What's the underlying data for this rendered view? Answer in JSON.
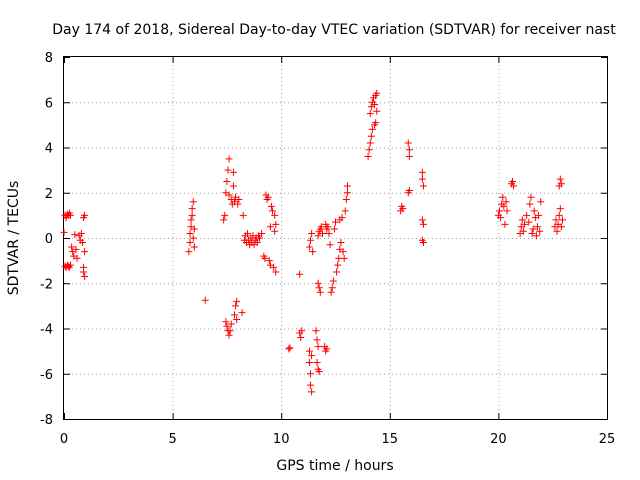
{
  "chart_data": {
    "type": "scatter",
    "title": "Day 174 of 2018, Sidereal Day-to-day VTEC variation (SDTVAR) for receiver nast",
    "xlabel": "GPS time / hours",
    "ylabel": "SDTVAR / TECUs",
    "xlim": [
      0,
      25
    ],
    "ylim": [
      -8,
      8
    ],
    "xticks": [
      "0",
      "5",
      "10",
      "15",
      "20",
      "25"
    ],
    "yticks": [
      "-8",
      "-6",
      "-4",
      "-2",
      "0",
      "2",
      "4",
      "6",
      "8"
    ],
    "grid": true,
    "marker": "plus",
    "color": "#ff0000",
    "series": [
      {
        "name": "SDTVAR",
        "points": [
          [
            0.0,
            0.25
          ],
          [
            0.05,
            1.0
          ],
          [
            0.1,
            0.9
          ],
          [
            0.15,
            1.05
          ],
          [
            0.2,
            1.0
          ],
          [
            0.25,
            1.1
          ],
          [
            0.3,
            1.0
          ],
          [
            0.05,
            -1.25
          ],
          [
            0.1,
            -1.3
          ],
          [
            0.15,
            -1.2
          ],
          [
            0.2,
            -1.25
          ],
          [
            0.25,
            -1.3
          ],
          [
            0.3,
            -1.2
          ],
          [
            0.35,
            -0.4
          ],
          [
            0.4,
            -0.6
          ],
          [
            0.45,
            -0.8
          ],
          [
            0.5,
            0.15
          ],
          [
            0.55,
            -0.5
          ],
          [
            0.6,
            -0.9
          ],
          [
            0.7,
            0.1
          ],
          [
            0.75,
            -0.1
          ],
          [
            0.8,
            0.2
          ],
          [
            0.85,
            -0.2
          ],
          [
            0.9,
            -1.3
          ],
          [
            0.9,
            -1.5
          ],
          [
            0.95,
            -1.7
          ],
          [
            0.95,
            -0.6
          ],
          [
            0.9,
            0.9
          ],
          [
            0.95,
            1.0
          ],
          [
            5.75,
            -0.6
          ],
          [
            5.8,
            -0.2
          ],
          [
            5.8,
            0.2
          ],
          [
            5.85,
            0.5
          ],
          [
            5.85,
            0.8
          ],
          [
            5.9,
            1.0
          ],
          [
            5.9,
            1.3
          ],
          [
            5.95,
            1.6
          ],
          [
            5.95,
            0.0
          ],
          [
            6.0,
            0.4
          ],
          [
            6.0,
            -0.4
          ],
          [
            6.5,
            -2.75
          ],
          [
            7.35,
            0.8
          ],
          [
            7.4,
            1.0
          ],
          [
            7.45,
            2.0
          ],
          [
            7.5,
            2.5
          ],
          [
            7.55,
            3.0
          ],
          [
            7.6,
            3.5
          ],
          [
            7.6,
            1.9
          ],
          [
            7.45,
            -3.7
          ],
          [
            7.5,
            -3.9
          ],
          [
            7.55,
            -4.1
          ],
          [
            7.6,
            -4.3
          ],
          [
            7.65,
            -4.1
          ],
          [
            7.7,
            -3.8
          ],
          [
            7.7,
            1.7
          ],
          [
            7.75,
            1.5
          ],
          [
            7.8,
            2.3
          ],
          [
            7.8,
            2.9
          ],
          [
            7.85,
            1.6
          ],
          [
            7.9,
            1.8
          ],
          [
            7.85,
            -3.4
          ],
          [
            7.9,
            -3.0
          ],
          [
            7.95,
            -2.8
          ],
          [
            7.95,
            -3.6
          ],
          [
            8.0,
            1.5
          ],
          [
            8.05,
            1.7
          ],
          [
            8.2,
            -3.3
          ],
          [
            8.25,
            1.0
          ],
          [
            8.3,
            -0.1
          ],
          [
            8.35,
            0.1
          ],
          [
            8.4,
            -0.2
          ],
          [
            8.45,
            0.2
          ],
          [
            8.5,
            -0.1
          ],
          [
            8.55,
            -0.3
          ],
          [
            8.6,
            0.0
          ],
          [
            8.65,
            -0.2
          ],
          [
            8.7,
            0.1
          ],
          [
            8.75,
            -0.3
          ],
          [
            8.8,
            -0.1
          ],
          [
            8.85,
            0.0
          ],
          [
            8.9,
            -0.2
          ],
          [
            8.95,
            0.1
          ],
          [
            9.0,
            0.0
          ],
          [
            9.1,
            0.2
          ],
          [
            9.2,
            -0.8
          ],
          [
            9.25,
            -0.9
          ],
          [
            9.3,
            1.9
          ],
          [
            9.35,
            1.7
          ],
          [
            9.4,
            1.8
          ],
          [
            9.45,
            -1.0
          ],
          [
            9.5,
            -1.2
          ],
          [
            9.5,
            0.5
          ],
          [
            9.55,
            1.4
          ],
          [
            9.6,
            1.2
          ],
          [
            9.65,
            -1.3
          ],
          [
            9.7,
            1.0
          ],
          [
            9.75,
            -1.5
          ],
          [
            9.7,
            0.3
          ],
          [
            9.75,
            0.6
          ],
          [
            10.35,
            -4.9
          ],
          [
            10.4,
            -4.85
          ],
          [
            10.85,
            -1.6
          ],
          [
            10.85,
            -4.2
          ],
          [
            10.9,
            -4.4
          ],
          [
            10.95,
            -4.1
          ],
          [
            11.3,
            -5.0
          ],
          [
            11.3,
            -5.5
          ],
          [
            11.35,
            -6.0
          ],
          [
            11.35,
            -6.5
          ],
          [
            11.4,
            -6.8
          ],
          [
            11.4,
            -5.2
          ],
          [
            11.3,
            -0.4
          ],
          [
            11.35,
            -0.1
          ],
          [
            11.4,
            0.2
          ],
          [
            11.45,
            -0.6
          ],
          [
            11.6,
            -4.1
          ],
          [
            11.65,
            -4.5
          ],
          [
            11.7,
            -4.8
          ],
          [
            11.65,
            -5.5
          ],
          [
            11.7,
            -5.8
          ],
          [
            11.75,
            -5.9
          ],
          [
            11.7,
            -2.0
          ],
          [
            11.75,
            -2.2
          ],
          [
            11.8,
            -2.4
          ],
          [
            11.7,
            0.1
          ],
          [
            11.75,
            0.3
          ],
          [
            11.8,
            0.4
          ],
          [
            11.85,
            0.5
          ],
          [
            11.9,
            0.2
          ],
          [
            12.0,
            -4.8
          ],
          [
            12.05,
            -5.0
          ],
          [
            12.1,
            -4.9
          ],
          [
            12.05,
            0.6
          ],
          [
            12.1,
            0.4
          ],
          [
            12.15,
            0.5
          ],
          [
            12.2,
            0.2
          ],
          [
            12.25,
            -0.3
          ],
          [
            12.3,
            -2.4
          ],
          [
            12.35,
            -2.2
          ],
          [
            12.4,
            -1.9
          ],
          [
            12.45,
            0.4
          ],
          [
            12.5,
            0.7
          ],
          [
            12.55,
            -1.5
          ],
          [
            12.6,
            -1.2
          ],
          [
            12.65,
            -0.9
          ],
          [
            12.7,
            -0.5
          ],
          [
            12.7,
            0.8
          ],
          [
            12.75,
            -0.2
          ],
          [
            12.8,
            0.9
          ],
          [
            12.85,
            -0.6
          ],
          [
            12.9,
            -0.9
          ],
          [
            12.95,
            1.2
          ],
          [
            13.0,
            1.7
          ],
          [
            13.05,
            2.0
          ],
          [
            13.05,
            2.3
          ],
          [
            14.0,
            3.6
          ],
          [
            14.05,
            3.9
          ],
          [
            14.1,
            4.2
          ],
          [
            14.15,
            4.5
          ],
          [
            14.2,
            4.8
          ],
          [
            14.1,
            5.5
          ],
          [
            14.15,
            5.8
          ],
          [
            14.2,
            6.0
          ],
          [
            14.25,
            6.2
          ],
          [
            14.3,
            5.9
          ],
          [
            14.35,
            6.3
          ],
          [
            14.4,
            6.4
          ],
          [
            14.3,
            5.0
          ],
          [
            14.35,
            5.1
          ],
          [
            14.4,
            5.6
          ],
          [
            15.5,
            1.2
          ],
          [
            15.55,
            1.4
          ],
          [
            15.6,
            1.3
          ],
          [
            15.85,
            4.2
          ],
          [
            15.9,
            3.9
          ],
          [
            15.9,
            3.6
          ],
          [
            15.85,
            2.0
          ],
          [
            15.9,
            2.1
          ],
          [
            16.5,
            2.9
          ],
          [
            16.5,
            2.6
          ],
          [
            16.55,
            2.3
          ],
          [
            16.5,
            0.8
          ],
          [
            16.55,
            0.6
          ],
          [
            16.5,
            -0.1
          ],
          [
            16.55,
            -0.2
          ],
          [
            20.0,
            1.0
          ],
          [
            20.05,
            1.2
          ],
          [
            20.1,
            0.9
          ],
          [
            20.15,
            1.5
          ],
          [
            20.2,
            1.8
          ],
          [
            20.25,
            1.4
          ],
          [
            20.3,
            0.6
          ],
          [
            20.35,
            1.6
          ],
          [
            20.4,
            1.2
          ],
          [
            20.6,
            2.4
          ],
          [
            20.65,
            2.5
          ],
          [
            20.7,
            2.3
          ],
          [
            21.0,
            0.2
          ],
          [
            21.05,
            0.5
          ],
          [
            21.1,
            0.8
          ],
          [
            21.15,
            0.3
          ],
          [
            21.2,
            0.6
          ],
          [
            21.3,
            1.0
          ],
          [
            21.4,
            0.7
          ],
          [
            21.45,
            1.5
          ],
          [
            21.5,
            1.8
          ],
          [
            21.55,
            0.2
          ],
          [
            21.6,
            0.4
          ],
          [
            21.65,
            1.2
          ],
          [
            21.7,
            0.9
          ],
          [
            21.75,
            0.1
          ],
          [
            21.8,
            0.5
          ],
          [
            21.85,
            1.0
          ],
          [
            21.9,
            0.3
          ],
          [
            21.95,
            1.6
          ],
          [
            22.6,
            0.5
          ],
          [
            22.65,
            0.8
          ],
          [
            22.7,
            0.3
          ],
          [
            22.75,
            0.6
          ],
          [
            22.8,
            1.0
          ],
          [
            22.85,
            1.3
          ],
          [
            22.9,
            0.5
          ],
          [
            22.95,
            0.8
          ],
          [
            22.8,
            2.3
          ],
          [
            22.85,
            2.6
          ],
          [
            22.9,
            2.4
          ]
        ]
      }
    ]
  }
}
